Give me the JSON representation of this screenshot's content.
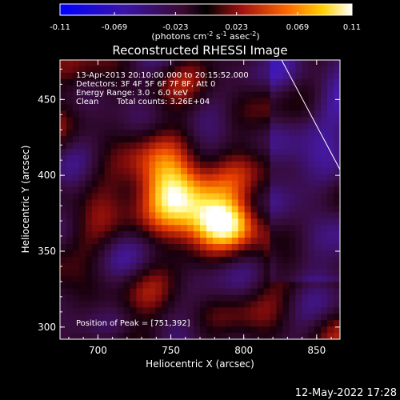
{
  "colorbar": {
    "ticks": [
      "-0.11",
      "-0.069",
      "-0.023",
      "0.023",
      "0.069",
      "0.11"
    ],
    "units_prefix": "(photons cm",
    "units_exp1": "-2",
    "units_mid": " s",
    "units_exp2": "-1",
    "units_mid2": " asec",
    "units_exp3": "-2",
    "units_suffix": ")",
    "range": [
      -0.11,
      0.11
    ]
  },
  "chart_data": {
    "type": "heatmap",
    "title": "Reconstructed RHESSI Image",
    "xlabel": "Heliocentric X (arcsec)",
    "ylabel": "Heliocentric Y (arcsec)",
    "xlim": [
      674,
      866
    ],
    "ylim": [
      292,
      476
    ],
    "x_ticks": [
      "700",
      "750",
      "800",
      "850"
    ],
    "y_ticks": [
      "300",
      "350",
      "400",
      "450"
    ],
    "colormap": "heat (blue-purple-red-yellow-white)",
    "sources": [
      {
        "x": 751,
        "y": 392,
        "peak": 0.11
      },
      {
        "x": 790,
        "y": 368,
        "peak": 0.095
      }
    ],
    "annotations": {
      "line1": "13-Apr-2013 20:10:00.000 to 20:15:52.000",
      "line2": "Detectors: 3F 4F 5F 6F 7F 8F, Att 0",
      "line3": "Energy Range: 3.0 - 6.0 keV",
      "line4_a": "Clean",
      "line4_b": "Total counts: 3.26E+04",
      "peak": "Position of Peak = [751,392]"
    }
  },
  "timestamp": "12-May-2022 17:28"
}
